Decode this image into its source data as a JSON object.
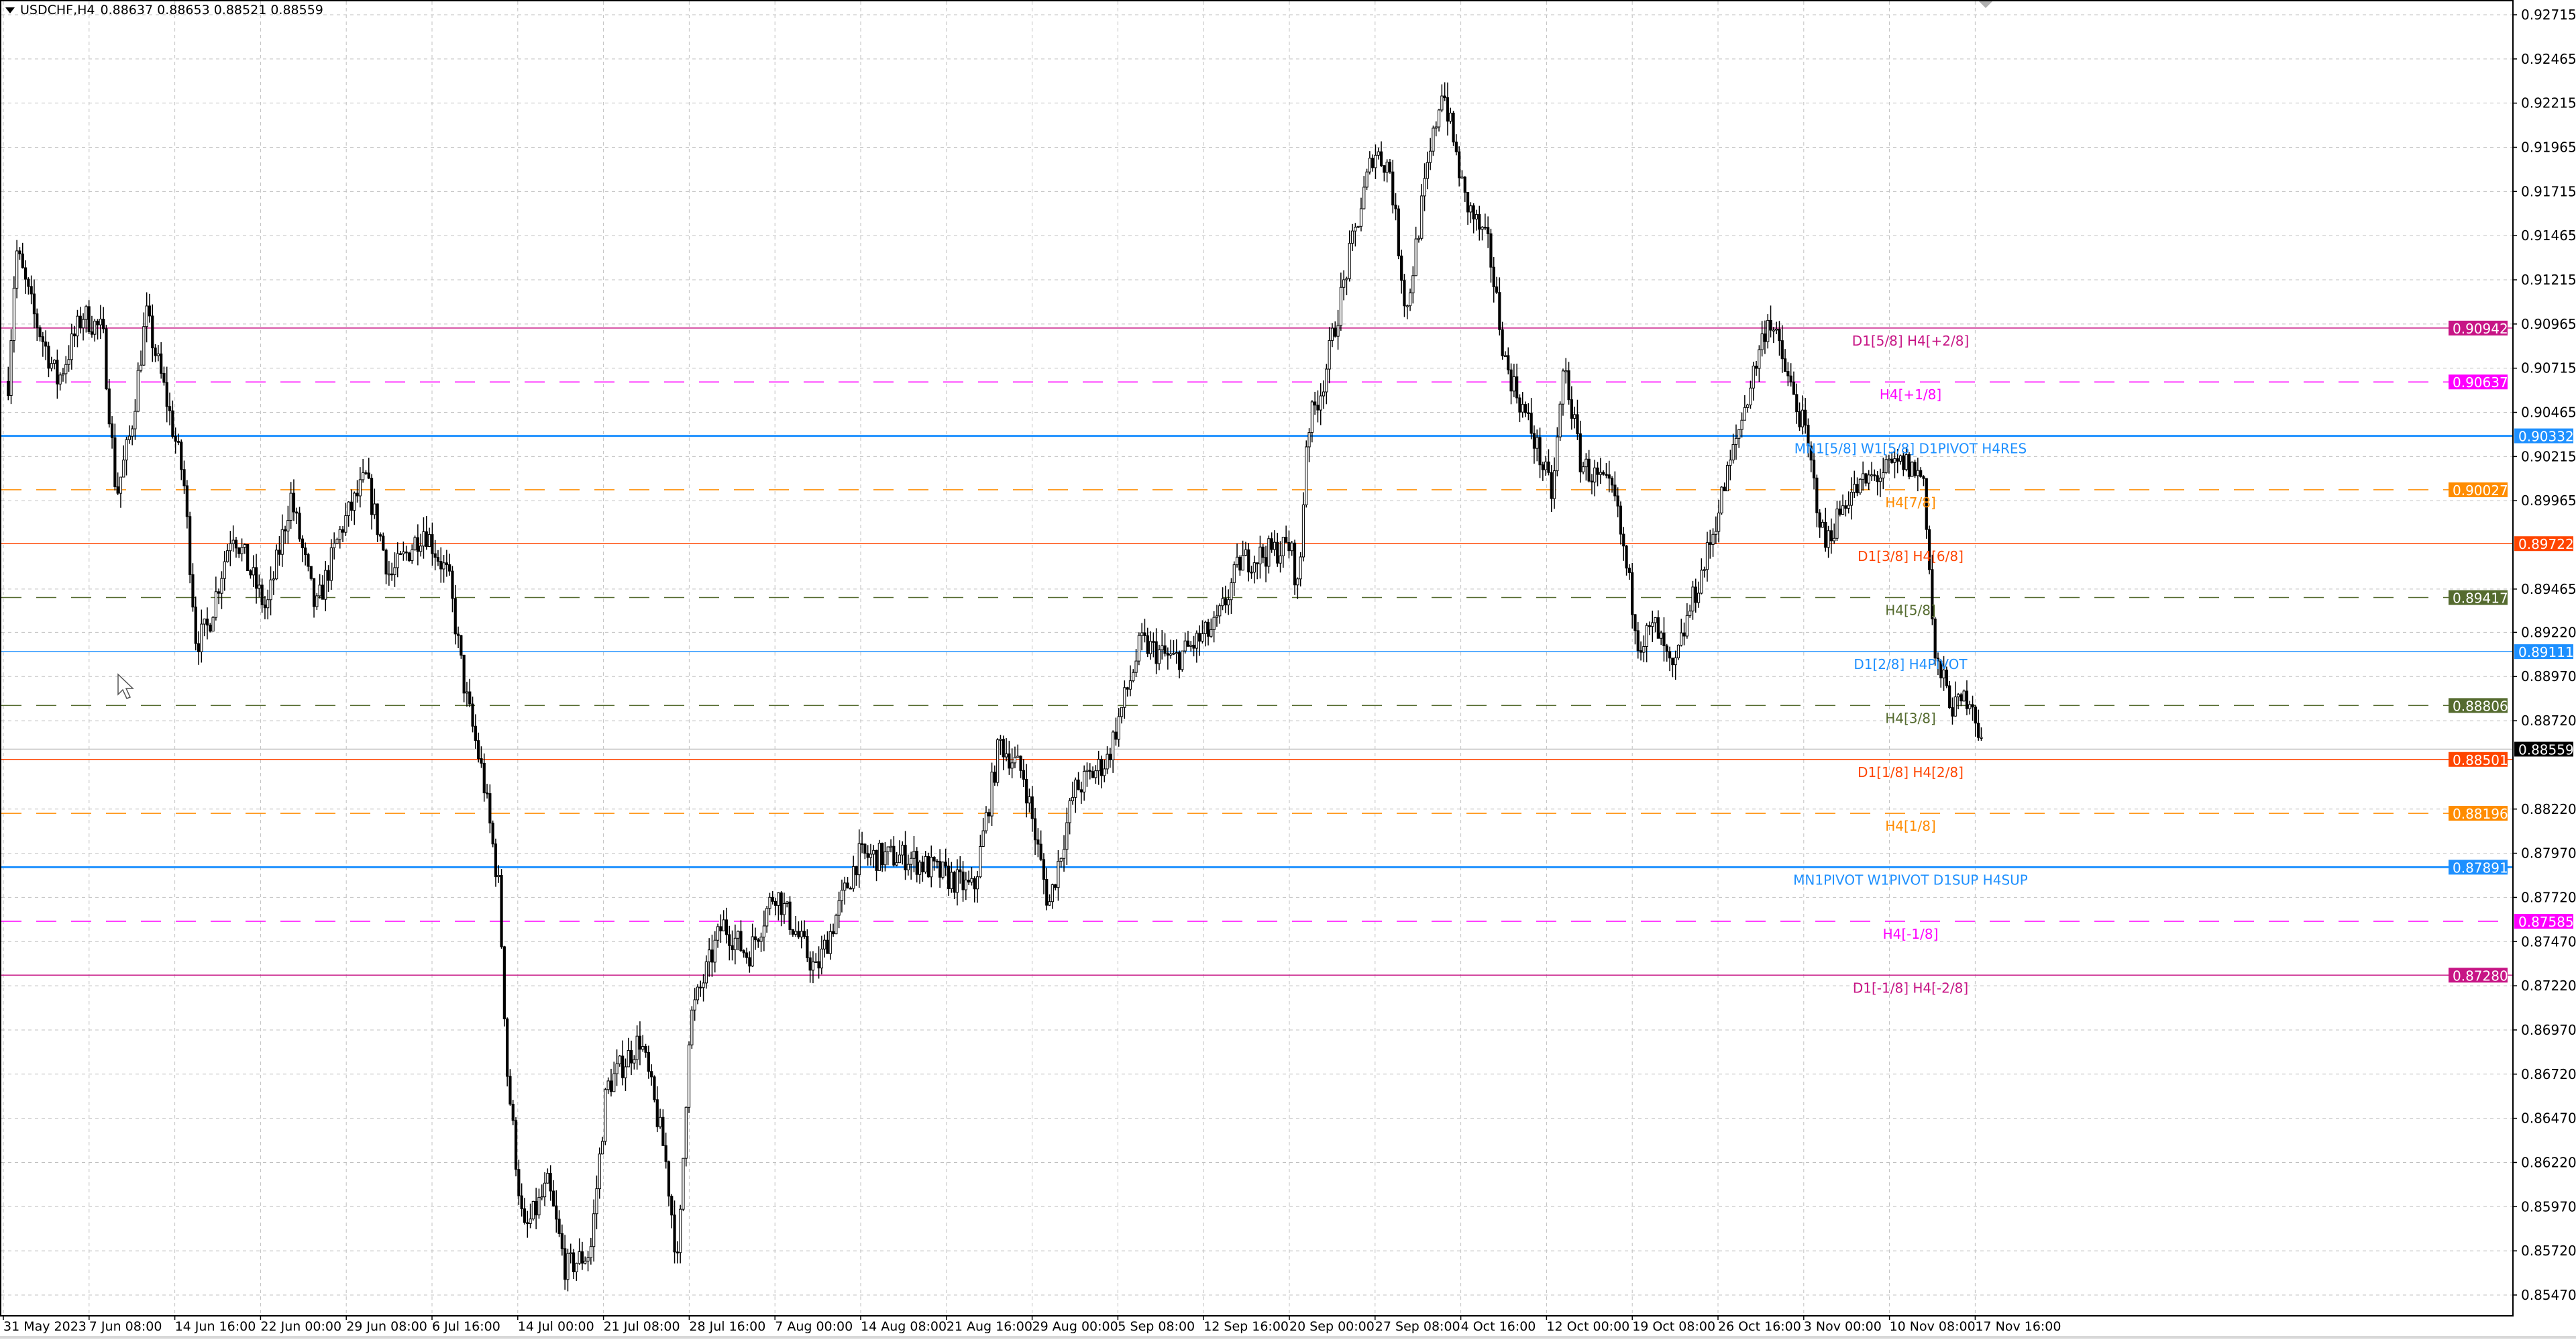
{
  "header": {
    "symbol": "USDCHF,H4",
    "ohlc": "0.88637 0.88653 0.88521 0.88559",
    "menu_icon": "triangle-down-icon"
  },
  "chart_data": {
    "type": "candlestick",
    "symbol": "USDCHF",
    "timeframe": "H4",
    "current_price": "0.88559",
    "ylim": [
      0.854,
      0.928
    ],
    "grid": true,
    "y_ticks": [
      "0.92715",
      "0.92465",
      "0.92215",
      "0.91965",
      "0.91715",
      "0.91465",
      "0.91215",
      "0.90965",
      "0.90715",
      "0.90465",
      "0.90215",
      "0.89965",
      "0.89465",
      "0.89220",
      "0.88970",
      "0.88720",
      "0.88220",
      "0.87970",
      "0.87720",
      "0.87470",
      "0.87220",
      "0.86970",
      "0.86720",
      "0.86470",
      "0.86220",
      "0.85970",
      "0.85720",
      "0.85470"
    ],
    "x_ticks": [
      {
        "label": "31 May 2023",
        "date": "2023-05-31T00:00"
      },
      {
        "label": "7 Jun 08:00",
        "date": "2023-06-07T08:00"
      },
      {
        "label": "14 Jun 16:00",
        "date": "2023-06-14T16:00"
      },
      {
        "label": "22 Jun 00:00",
        "date": "2023-06-22T00:00"
      },
      {
        "label": "29 Jun 08:00",
        "date": "2023-06-29T08:00"
      },
      {
        "label": "6 Jul 16:00",
        "date": "2023-07-06T16:00"
      },
      {
        "label": "14 Jul 00:00",
        "date": "2023-07-14T00:00"
      },
      {
        "label": "21 Jul 08:00",
        "date": "2023-07-21T08:00"
      },
      {
        "label": "28 Jul 16:00",
        "date": "2023-07-28T16:00"
      },
      {
        "label": "7 Aug 00:00",
        "date": "2023-08-07T00:00"
      },
      {
        "label": "14 Aug 08:00",
        "date": "2023-08-14T08:00"
      },
      {
        "label": "21 Aug 16:00",
        "date": "2023-08-21T16:00"
      },
      {
        "label": "29 Aug 00:00",
        "date": "2023-08-29T00:00"
      },
      {
        "label": "5 Sep 08:00",
        "date": "2023-09-05T08:00"
      },
      {
        "label": "12 Sep 16:00",
        "date": "2023-09-12T16:00"
      },
      {
        "label": "20 Sep 00:00",
        "date": "2023-09-20T00:00"
      },
      {
        "label": "27 Sep 08:00",
        "date": "2023-09-27T08:00"
      },
      {
        "label": "4 Oct 16:00",
        "date": "2023-10-04T16:00"
      },
      {
        "label": "12 Oct 00:00",
        "date": "2023-10-12T00:00"
      },
      {
        "label": "19 Oct 08:00",
        "date": "2023-10-19T08:00"
      },
      {
        "label": "26 Oct 16:00",
        "date": "2023-10-26T16:00"
      },
      {
        "label": "3 Nov 00:00",
        "date": "2023-11-03T00:00"
      },
      {
        "label": "10 Nov 08:00",
        "date": "2023-11-10T08:00"
      },
      {
        "label": "17 Nov 16:00",
        "date": "2023-11-17T16:00"
      }
    ],
    "price_path": [
      [
        "2023-05-31T10:00",
        0.9064
      ],
      [
        "2023-06-01T02:00",
        0.9139
      ],
      [
        "2023-06-02T14:00",
        0.9102
      ],
      [
        "2023-06-04T16:00",
        0.9064
      ],
      [
        "2023-06-06T19:00",
        0.9102
      ],
      [
        "2023-06-08T12:00",
        0.9092
      ],
      [
        "2023-06-09T16:00",
        0.8999
      ],
      [
        "2023-06-10T22:00",
        0.9036
      ],
      [
        "2023-06-12T05:00",
        0.9102
      ],
      [
        "2023-06-13T22:00",
        0.9055
      ],
      [
        "2023-06-15T10:00",
        0.9009
      ],
      [
        "2023-06-16T12:00",
        0.8916
      ],
      [
        "2023-06-17T12:00",
        0.8925
      ],
      [
        "2023-06-19T14:00",
        0.8981
      ],
      [
        "2023-06-22T12:00",
        0.8934
      ],
      [
        "2023-06-24T14:00",
        0.8999
      ],
      [
        "2023-06-26T17:00",
        0.8934
      ],
      [
        "2023-06-28T22:00",
        0.8981
      ],
      [
        "2023-07-01T00:00",
        0.9009
      ],
      [
        "2023-07-03T02:00",
        0.8953
      ],
      [
        "2023-07-06T00:00",
        0.8981
      ],
      [
        "2023-07-08T02:00",
        0.8953
      ],
      [
        "2023-07-09T12:00",
        0.8888
      ],
      [
        "2023-07-11T00:00",
        0.8841
      ],
      [
        "2023-07-12T10:00",
        0.8776
      ],
      [
        "2023-07-13T02:00",
        0.8674
      ],
      [
        "2023-07-14T12:00",
        0.8581
      ],
      [
        "2023-07-16T14:00",
        0.8609
      ],
      [
        "2023-07-18T02:00",
        0.8562
      ],
      [
        "2023-07-20T05:00",
        0.8571
      ],
      [
        "2023-07-21T14:00",
        0.8664
      ],
      [
        "2023-07-24T12:00",
        0.8692
      ],
      [
        "2023-07-26T14:00",
        0.8627
      ],
      [
        "2023-07-27T17:00",
        0.8562
      ],
      [
        "2023-07-28T17:00",
        0.8702
      ],
      [
        "2023-08-01T07:00",
        0.8757
      ],
      [
        "2023-08-04T02:00",
        0.8739
      ],
      [
        "2023-08-07T00:00",
        0.8776
      ],
      [
        "2023-08-10T12:00",
        0.873
      ],
      [
        "2023-08-14T02:00",
        0.8795
      ],
      [
        "2023-08-18T07:00",
        0.8795
      ],
      [
        "2023-08-24T00:00",
        0.8776
      ],
      [
        "2023-08-26T05:00",
        0.886
      ],
      [
        "2023-08-28T07:00",
        0.8841
      ],
      [
        "2023-08-30T10:00",
        0.8767
      ],
      [
        "2023-09-01T14:00",
        0.8832
      ],
      [
        "2023-09-04T10:00",
        0.885
      ],
      [
        "2023-09-07T07:00",
        0.8916
      ],
      [
        "2023-09-10T02:00",
        0.8906
      ],
      [
        "2023-09-13T17:00",
        0.8925
      ],
      [
        "2023-09-15T19:00",
        0.8962
      ],
      [
        "2023-09-20T02:00",
        0.8971
      ],
      [
        "2023-09-20T19:00",
        0.8944
      ],
      [
        "2023-09-21T12:00",
        0.9036
      ],
      [
        "2023-09-22T22:00",
        0.9064
      ],
      [
        "2023-09-25T00:00",
        0.913
      ],
      [
        "2023-09-27T05:00",
        0.9195
      ],
      [
        "2023-09-28T14:00",
        0.9185
      ],
      [
        "2023-09-30T00:00",
        0.9102
      ],
      [
        "2023-10-01T10:00",
        0.9167
      ],
      [
        "2023-10-03T02:00",
        0.9232
      ],
      [
        "2023-10-05T00:00",
        0.9167
      ],
      [
        "2023-10-07T02:00",
        0.9139
      ],
      [
        "2023-10-08T12:00",
        0.9074
      ],
      [
        "2023-10-10T17:00",
        0.9036
      ],
      [
        "2023-10-12T12:00",
        0.8999
      ],
      [
        "2023-10-13T12:00",
        0.9074
      ],
      [
        "2023-10-14T22:00",
        0.9018
      ],
      [
        "2023-10-17T19:00",
        0.8999
      ],
      [
        "2023-10-19T22:00",
        0.8916
      ],
      [
        "2023-10-21T07:00",
        0.8925
      ],
      [
        "2023-10-22T19:00",
        0.8897
      ],
      [
        "2023-10-24T05:00",
        0.8934
      ],
      [
        "2023-10-25T14:00",
        0.8962
      ],
      [
        "2023-10-28T10:00",
        0.9036
      ],
      [
        "2023-10-31T00:00",
        0.9102
      ],
      [
        "2023-11-01T17:00",
        0.9064
      ],
      [
        "2023-11-03T02:00",
        0.9036
      ],
      [
        "2023-11-04T19:00",
        0.8971
      ],
      [
        "2023-11-06T17:00",
        0.8999
      ],
      [
        "2023-11-08T19:00",
        0.9009
      ],
      [
        "2023-11-11T14:00",
        0.9018
      ],
      [
        "2023-11-13T07:00",
        0.9009
      ],
      [
        "2023-11-14T05:00",
        0.8906
      ],
      [
        "2023-11-15T22:00",
        0.8878
      ],
      [
        "2023-11-17T07:00",
        0.8888
      ],
      [
        "2023-11-18T07:00",
        0.8855
      ]
    ],
    "levels": [
      {
        "price": "0.90942",
        "label": "D1[5/8] H4[+2/8]",
        "color": "#c71585",
        "style": "solid"
      },
      {
        "price": "0.90637",
        "label": "H4[+1/8]",
        "color": "#ff00ff",
        "style": "dashed"
      },
      {
        "price": "0.90332",
        "label": "MN1[5/8] W1[5/8] D1PIVOT H4RES",
        "color": "#1e90ff",
        "style": "solid-thick"
      },
      {
        "price": "0.90027",
        "label": "H4[7/8]",
        "color": "#ff8c00",
        "style": "dashed"
      },
      {
        "price": "0.89722",
        "label": "D1[3/8] H4[6/8]",
        "color": "#ff4500",
        "style": "solid"
      },
      {
        "price": "0.89417",
        "label": "H4[5/8]",
        "color": "#556b2f",
        "style": "dashed"
      },
      {
        "price": "0.89111",
        "label": "D1[2/8] H4PIVOT",
        "color": "#1e90ff",
        "style": "solid"
      },
      {
        "price": "0.88806",
        "label": "H4[3/8]",
        "color": "#556b2f",
        "style": "dashed"
      },
      {
        "price": "0.88501",
        "label": "D1[1/8] H4[2/8]",
        "color": "#ff4500",
        "style": "solid"
      },
      {
        "price": "0.88196",
        "label": "H4[1/8]",
        "color": "#ff8c00",
        "style": "dashed"
      },
      {
        "price": "0.87891",
        "label": "MN1PIVOT W1PIVOT D1SUP H4SUP",
        "color": "#1e90ff",
        "style": "solid-thick"
      },
      {
        "price": "0.87585",
        "label": "H4[-1/8]",
        "color": "#ff00ff",
        "style": "dashed"
      },
      {
        "price": "0.87280",
        "label": "D1[-1/8] H4[-2/8]",
        "color": "#c71585",
        "style": "solid"
      }
    ],
    "colors": {
      "bull_body": "#ffffff",
      "bear_body": "#000000",
      "outline": "#000000",
      "grid": "#c0c0c0",
      "bid_line": "#c0c0c0",
      "bid_label": "#000000"
    }
  }
}
